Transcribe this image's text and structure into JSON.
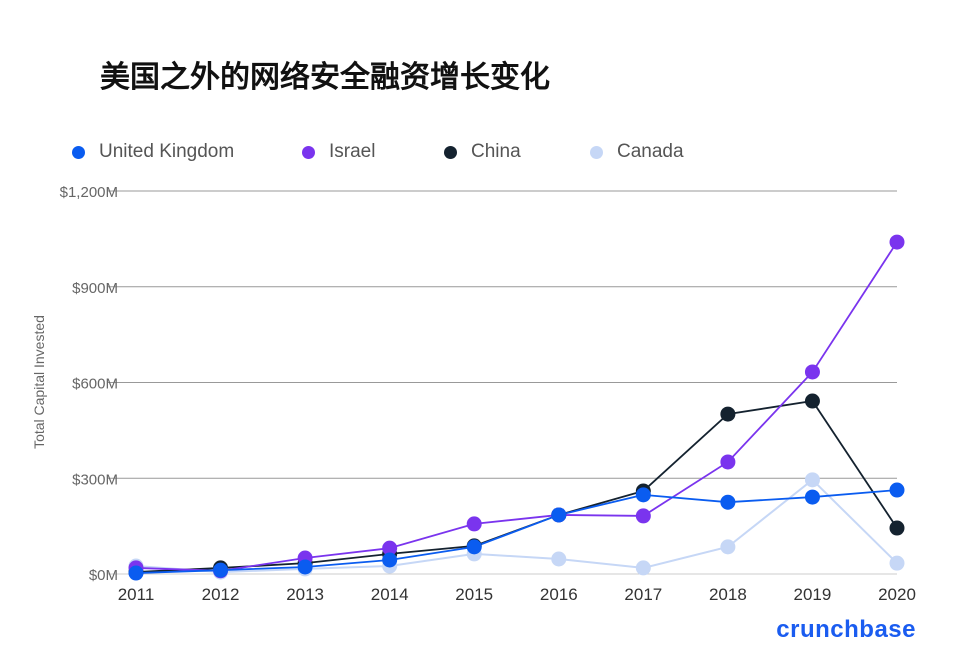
{
  "chart_data": {
    "type": "line",
    "title": "美国之外的网络安全融资增长变化",
    "xlabel": "",
    "ylabel": "Total Capital Invested",
    "x": [
      "2011",
      "2012",
      "2013",
      "2014",
      "2015",
      "2016",
      "2017",
      "2018",
      "2019",
      "2020"
    ],
    "ylim": [
      0,
      1200
    ],
    "yticks": [
      0,
      300,
      600,
      900,
      1200
    ],
    "ytick_labels": [
      "$0M",
      "$300M",
      "$600M",
      "$900M",
      "$1,200M"
    ],
    "grid": true,
    "legend_position": "top-left",
    "series": [
      {
        "name": "United Kingdom",
        "color": "#0a5cf0",
        "values": [
          3,
          12,
          22,
          44,
          85,
          185,
          248,
          225,
          241,
          263
        ]
      },
      {
        "name": "Israel",
        "color": "#7a34ee",
        "values": [
          19,
          10,
          50,
          81,
          157,
          185,
          182,
          351,
          633,
          1040
        ]
      },
      {
        "name": "China",
        "color": "#14222f",
        "values": [
          6,
          19,
          34,
          63,
          88,
          185,
          260,
          501,
          542,
          144
        ]
      },
      {
        "name": "Canada",
        "color": "#c6d7f6",
        "values": [
          25,
          6,
          16,
          25,
          63,
          47,
          19,
          85,
          295,
          34
        ]
      }
    ]
  },
  "brand": "crunchbase"
}
